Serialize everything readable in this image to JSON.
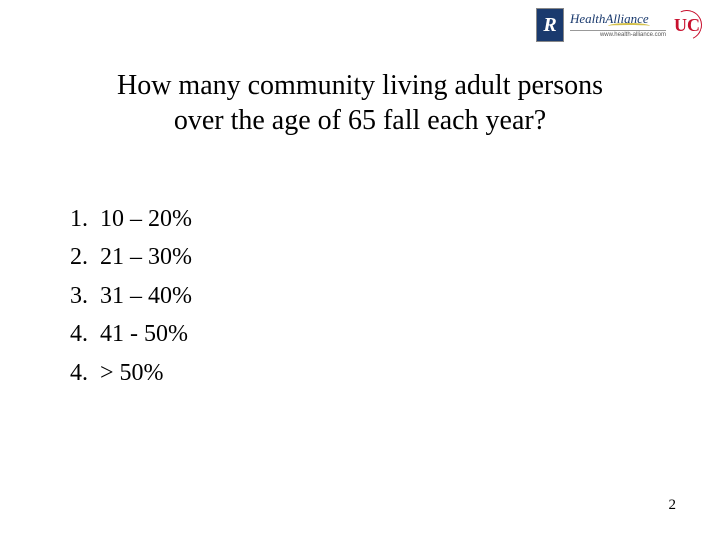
{
  "logos": {
    "r_letter": "R",
    "health_alliance": "HealthAlliance",
    "health_alliance_url": "www.health-alliance.com",
    "uc": "UC"
  },
  "title": {
    "line1": "How many community living adult persons",
    "line2": "over the age of 65 fall each year?"
  },
  "options": [
    {
      "num": "1.",
      "text": "10 – 20%"
    },
    {
      "num": "2.",
      "text": "21 – 30%"
    },
    {
      "num": "3.",
      "text": "31 – 40%"
    },
    {
      "num": "4.",
      "text": "41 - 50%"
    },
    {
      "num": "4.",
      "text": "> 50%"
    }
  ],
  "page_number": "2",
  "colors": {
    "text": "#000000",
    "background": "#ffffff",
    "logo_blue": "#1a3a6e",
    "logo_gold": "#d4c04a",
    "logo_red": "#c8102e"
  },
  "fonts": {
    "title_size_pt": 28,
    "body_size_pt": 24,
    "pagenum_size_pt": 15,
    "family": "Times New Roman"
  }
}
